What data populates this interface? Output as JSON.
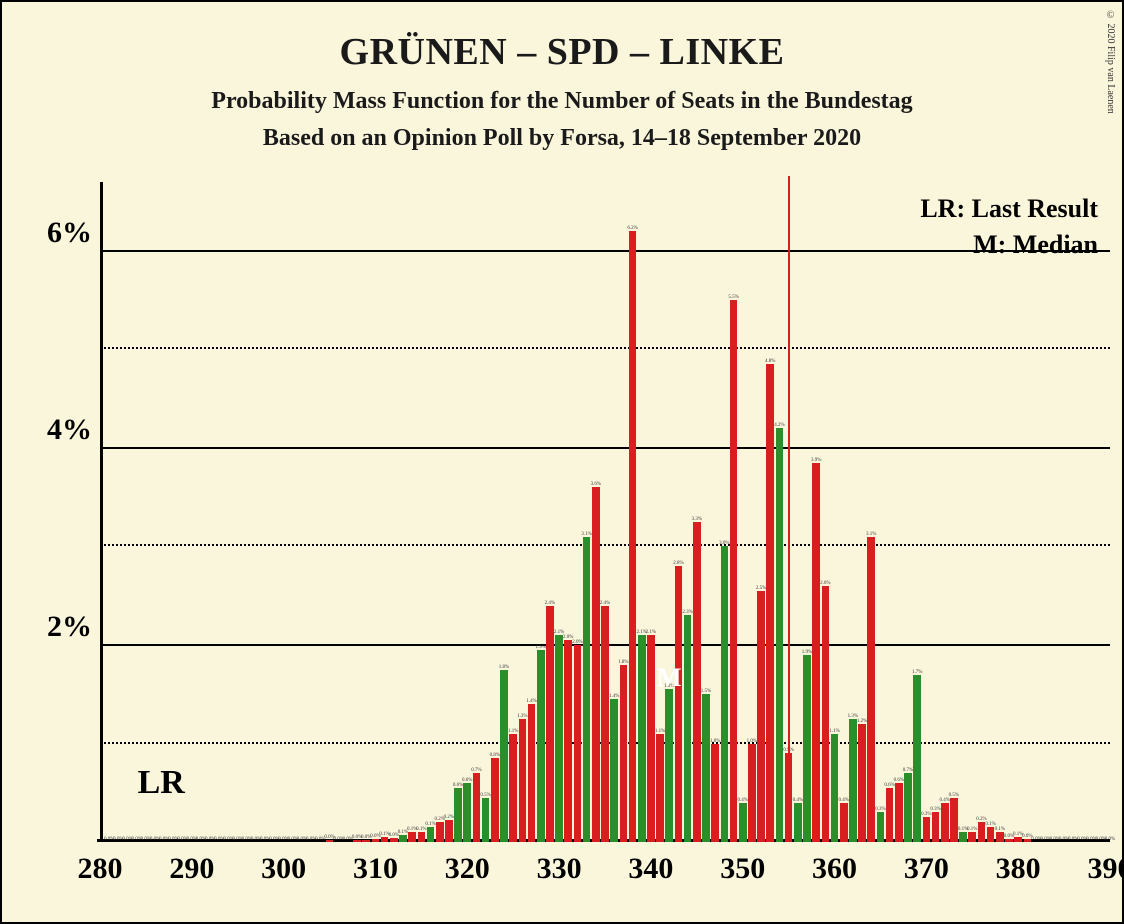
{
  "copyright": "© 2020 Filip van Laenen",
  "title": "GRÜNEN – SPD – LINKE",
  "subtitle": "Probability Mass Function for the Number of Seats in the Bundestag",
  "subtitle2": "Based on an Opinion Poll by Forsa, 14–18 September 2020",
  "legend": {
    "lr": "LR: Last Result",
    "m": "M: Median"
  },
  "colors": {
    "background": "#faf6dc",
    "red": "#d81e1e",
    "green": "#2a8f2a",
    "axis": "#000000"
  },
  "chart": {
    "type": "bar",
    "xlim": [
      280,
      390
    ],
    "xtick_step": 10,
    "ylim": [
      0,
      6.7
    ],
    "ytick_major": [
      2,
      4,
      6
    ],
    "ytick_minor": [
      1,
      3,
      5
    ],
    "majority_x": 355,
    "lr_x": 289,
    "median_x": 342,
    "bar_half_width_units": 0.42,
    "bars": [
      {
        "x": 281,
        "v": 0.0,
        "c": "red"
      },
      {
        "x": 282,
        "v": 0.0,
        "c": "red"
      },
      {
        "x": 283,
        "v": 0.0,
        "c": "red"
      },
      {
        "x": 284,
        "v": 0.0,
        "c": "red"
      },
      {
        "x": 285,
        "v": 0.0,
        "c": "red"
      },
      {
        "x": 286,
        "v": 0.0,
        "c": "red"
      },
      {
        "x": 287,
        "v": 0.0,
        "c": "red"
      },
      {
        "x": 288,
        "v": 0.0,
        "c": "red"
      },
      {
        "x": 289,
        "v": 0.0,
        "c": "green"
      },
      {
        "x": 290,
        "v": 0.0,
        "c": "red"
      },
      {
        "x": 291,
        "v": 0.0,
        "c": "red"
      },
      {
        "x": 292,
        "v": 0.0,
        "c": "red"
      },
      {
        "x": 293,
        "v": 0.0,
        "c": "red"
      },
      {
        "x": 294,
        "v": 0.0,
        "c": "red"
      },
      {
        "x": 295,
        "v": 0.0,
        "c": "red"
      },
      {
        "x": 296,
        "v": 0.0,
        "c": "red"
      },
      {
        "x": 297,
        "v": 0.0,
        "c": "red"
      },
      {
        "x": 298,
        "v": 0.0,
        "c": "red"
      },
      {
        "x": 299,
        "v": 0.0,
        "c": "red"
      },
      {
        "x": 300,
        "v": 0.0,
        "c": "red"
      },
      {
        "x": 301,
        "v": 0.0,
        "c": "red"
      },
      {
        "x": 302,
        "v": 0.0,
        "c": "red"
      },
      {
        "x": 303,
        "v": 0.0,
        "c": "red"
      },
      {
        "x": 304,
        "v": 0.0,
        "c": "red"
      },
      {
        "x": 305,
        "v": 0.02,
        "c": "red"
      },
      {
        "x": 306,
        "v": 0.0,
        "c": "red"
      },
      {
        "x": 307,
        "v": 0.0,
        "c": "red"
      },
      {
        "x": 308,
        "v": 0.02,
        "c": "red"
      },
      {
        "x": 309,
        "v": 0.02,
        "c": "red"
      },
      {
        "x": 310,
        "v": 0.03,
        "c": "red"
      },
      {
        "x": 311,
        "v": 0.05,
        "c": "red"
      },
      {
        "x": 312,
        "v": 0.04,
        "c": "red"
      },
      {
        "x": 313,
        "v": 0.07,
        "c": "green"
      },
      {
        "x": 314,
        "v": 0.1,
        "c": "red"
      },
      {
        "x": 315,
        "v": 0.1,
        "c": "red"
      },
      {
        "x": 316,
        "v": 0.15,
        "c": "green"
      },
      {
        "x": 317,
        "v": 0.2,
        "c": "red"
      },
      {
        "x": 318,
        "v": 0.22,
        "c": "red"
      },
      {
        "x": 319,
        "v": 0.55,
        "c": "green"
      },
      {
        "x": 320,
        "v": 0.6,
        "c": "green"
      },
      {
        "x": 321,
        "v": 0.7,
        "c": "red"
      },
      {
        "x": 322,
        "v": 0.45,
        "c": "green"
      },
      {
        "x": 323,
        "v": 0.85,
        "c": "red"
      },
      {
        "x": 324,
        "v": 1.75,
        "c": "green"
      },
      {
        "x": 325,
        "v": 1.1,
        "c": "red"
      },
      {
        "x": 326,
        "v": 1.25,
        "c": "red"
      },
      {
        "x": 327,
        "v": 1.4,
        "c": "red"
      },
      {
        "x": 328,
        "v": 1.95,
        "c": "green"
      },
      {
        "x": 329,
        "v": 2.4,
        "c": "red"
      },
      {
        "x": 330,
        "v": 2.1,
        "c": "green"
      },
      {
        "x": 331,
        "v": 2.05,
        "c": "red"
      },
      {
        "x": 332,
        "v": 2.0,
        "c": "red"
      },
      {
        "x": 333,
        "v": 3.1,
        "c": "green"
      },
      {
        "x": 334,
        "v": 3.6,
        "c": "red"
      },
      {
        "x": 335,
        "v": 2.4,
        "c": "red"
      },
      {
        "x": 336,
        "v": 1.45,
        "c": "green"
      },
      {
        "x": 337,
        "v": 1.8,
        "c": "red"
      },
      {
        "x": 338,
        "v": 6.2,
        "c": "red"
      },
      {
        "x": 339,
        "v": 2.1,
        "c": "green"
      },
      {
        "x": 340,
        "v": 2.1,
        "c": "red"
      },
      {
        "x": 341,
        "v": 1.1,
        "c": "red"
      },
      {
        "x": 342,
        "v": 1.55,
        "c": "green"
      },
      {
        "x": 343,
        "v": 2.8,
        "c": "red"
      },
      {
        "x": 344,
        "v": 2.3,
        "c": "green"
      },
      {
        "x": 345,
        "v": 3.25,
        "c": "red"
      },
      {
        "x": 346,
        "v": 1.5,
        "c": "green"
      },
      {
        "x": 347,
        "v": 1.0,
        "c": "red"
      },
      {
        "x": 348,
        "v": 3.0,
        "c": "green"
      },
      {
        "x": 349,
        "v": 5.5,
        "c": "red"
      },
      {
        "x": 350,
        "v": 0.4,
        "c": "green"
      },
      {
        "x": 351,
        "v": 1.0,
        "c": "red"
      },
      {
        "x": 352,
        "v": 2.55,
        "c": "red"
      },
      {
        "x": 353,
        "v": 4.85,
        "c": "red"
      },
      {
        "x": 354,
        "v": 4.2,
        "c": "green"
      },
      {
        "x": 355,
        "v": 0.9,
        "c": "red"
      },
      {
        "x": 356,
        "v": 0.4,
        "c": "green"
      },
      {
        "x": 357,
        "v": 1.9,
        "c": "green"
      },
      {
        "x": 358,
        "v": 3.85,
        "c": "red"
      },
      {
        "x": 359,
        "v": 2.6,
        "c": "red"
      },
      {
        "x": 360,
        "v": 1.1,
        "c": "green"
      },
      {
        "x": 361,
        "v": 0.4,
        "c": "red"
      },
      {
        "x": 362,
        "v": 1.25,
        "c": "green"
      },
      {
        "x": 363,
        "v": 1.2,
        "c": "red"
      },
      {
        "x": 364,
        "v": 3.1,
        "c": "red"
      },
      {
        "x": 365,
        "v": 0.3,
        "c": "green"
      },
      {
        "x": 366,
        "v": 0.55,
        "c": "red"
      },
      {
        "x": 367,
        "v": 0.6,
        "c": "red"
      },
      {
        "x": 368,
        "v": 0.7,
        "c": "green"
      },
      {
        "x": 369,
        "v": 1.7,
        "c": "green"
      },
      {
        "x": 370,
        "v": 0.25,
        "c": "red"
      },
      {
        "x": 371,
        "v": 0.3,
        "c": "red"
      },
      {
        "x": 372,
        "v": 0.4,
        "c": "red"
      },
      {
        "x": 373,
        "v": 0.45,
        "c": "red"
      },
      {
        "x": 374,
        "v": 0.1,
        "c": "green"
      },
      {
        "x": 375,
        "v": 0.1,
        "c": "red"
      },
      {
        "x": 376,
        "v": 0.2,
        "c": "red"
      },
      {
        "x": 377,
        "v": 0.15,
        "c": "red"
      },
      {
        "x": 378,
        "v": 0.1,
        "c": "red"
      },
      {
        "x": 379,
        "v": 0.03,
        "c": "red"
      },
      {
        "x": 380,
        "v": 0.05,
        "c": "red"
      },
      {
        "x": 381,
        "v": 0.03,
        "c": "red"
      },
      {
        "x": 382,
        "v": 0.0,
        "c": "red"
      },
      {
        "x": 383,
        "v": 0.0,
        "c": "red"
      },
      {
        "x": 384,
        "v": 0.0,
        "c": "red"
      },
      {
        "x": 385,
        "v": 0.0,
        "c": "red"
      },
      {
        "x": 386,
        "v": 0.0,
        "c": "red"
      },
      {
        "x": 387,
        "v": 0.0,
        "c": "red"
      },
      {
        "x": 388,
        "v": 0.0,
        "c": "red"
      },
      {
        "x": 389,
        "v": 0.0,
        "c": "red"
      },
      {
        "x": 390,
        "v": 0.0,
        "c": "red"
      }
    ]
  }
}
